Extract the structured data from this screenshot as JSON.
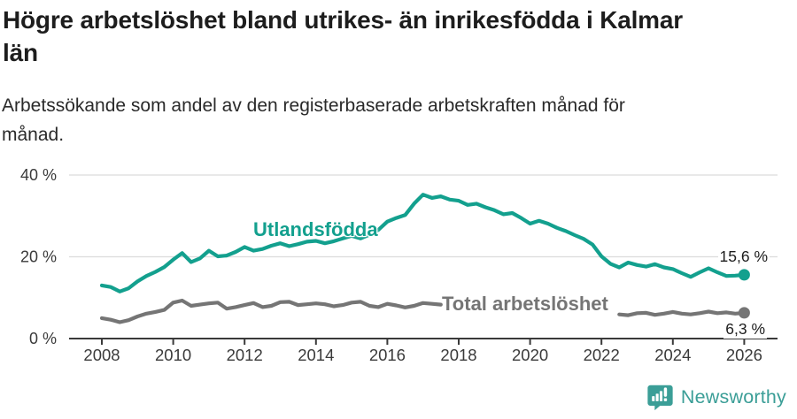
{
  "header": {
    "title": "Högre arbetslöshet bland utrikes- än inrikesfödda i Kalmar\nlän",
    "subtitle": "Arbetssökande som andel av den registerbaserade arbetskraften månad för\nmånad."
  },
  "colors": {
    "teal": "#13a08e",
    "gray": "#757575",
    "grid": "#dcdcdc",
    "axis": "#3a3a3a",
    "tick_text": "#3a3a3a",
    "value_text": "#1d1d1d",
    "logo_teal": "#3b9e97"
  },
  "chart_data": {
    "type": "line",
    "title": "Högre arbetslöshet bland utrikes- än inrikesfödda i Kalmar län",
    "subtitle": "Arbetssökande som andel av den registerbaserade arbetskraften månad för månad.",
    "x_unit": "year (monthly series shown, sampled quarterly)",
    "x_start": 2008,
    "x_step": 0.25,
    "xticks": [
      2008,
      2010,
      2012,
      2014,
      2016,
      2018,
      2020,
      2022,
      2024,
      2026
    ],
    "yticks": [
      {
        "value": 0,
        "label": "0 %"
      },
      {
        "value": 20,
        "label": "20 %"
      },
      {
        "value": 40,
        "label": "40 %"
      }
    ],
    "ylim": [
      0,
      43
    ],
    "grid": "horizontal",
    "legend_position": "inline-labels",
    "series": [
      {
        "name": "Utlandsfödda",
        "color": "#13a08e",
        "end_label": "15,6 %",
        "end_value": 15.6,
        "values": [
          13.0,
          12.6,
          11.5,
          12.3,
          14.0,
          15.3,
          16.3,
          17.5,
          19.3,
          20.9,
          18.7,
          19.6,
          21.5,
          20.1,
          20.3,
          21.2,
          22.4,
          21.5,
          21.9,
          22.7,
          23.3,
          22.6,
          23.1,
          23.7,
          23.9,
          23.3,
          23.8,
          24.5,
          25.1,
          24.5,
          25.4,
          26.6,
          28.6,
          29.5,
          30.2,
          33.0,
          35.2,
          34.4,
          34.8,
          34.0,
          33.7,
          32.7,
          33.0,
          32.1,
          31.4,
          30.4,
          30.7,
          29.5,
          28.1,
          28.8,
          28.1,
          27.1,
          26.3,
          25.3,
          24.4,
          23.0,
          20.1,
          18.3,
          17.4,
          18.6,
          18.0,
          17.6,
          18.2,
          17.4,
          17.0,
          16.0,
          15.1,
          16.2,
          17.2,
          16.2,
          15.3,
          15.4,
          15.6
        ]
      },
      {
        "name": "Total arbetslöshet",
        "color": "#757575",
        "end_label": "6,3 %",
        "end_value": 6.3,
        "values": [
          5.0,
          4.6,
          4.0,
          4.5,
          5.4,
          6.1,
          6.5,
          7.0,
          8.8,
          9.3,
          8.0,
          8.3,
          8.6,
          8.8,
          7.3,
          7.7,
          8.2,
          8.7,
          7.7,
          8.0,
          8.9,
          9.0,
          8.2,
          8.4,
          8.6,
          8.4,
          7.9,
          8.2,
          8.8,
          9.0,
          8.0,
          7.7,
          8.5,
          8.1,
          7.6,
          8.0,
          8.7,
          8.5,
          8.3,
          null,
          null,
          null,
          null,
          null,
          null,
          null,
          null,
          null,
          null,
          null,
          null,
          null,
          null,
          null,
          null,
          null,
          null,
          null,
          5.9,
          5.7,
          6.2,
          6.3,
          5.8,
          6.1,
          6.5,
          6.1,
          5.9,
          6.2,
          6.6,
          6.2,
          6.4,
          6.1,
          6.3
        ]
      }
    ]
  },
  "footer": {
    "brand": "Newsworthy"
  }
}
